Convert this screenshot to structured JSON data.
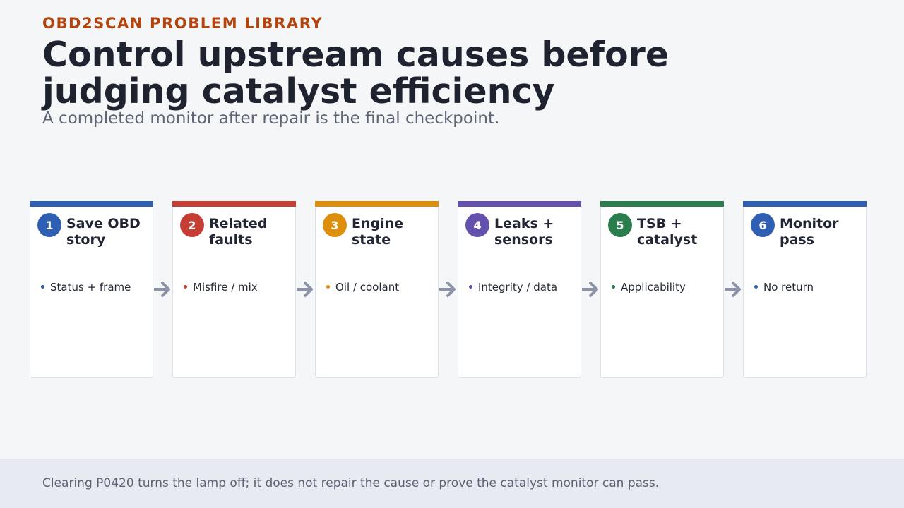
{
  "header": {
    "eyebrow": "OBD2SCAN PROBLEM LIBRARY",
    "title": "Control upstream causes before judging catalyst efficiency",
    "subtitle": "A completed monitor after repair is the final checkpoint."
  },
  "steps": [
    {
      "number": "1",
      "label": "Save OBD story",
      "detail": "Status + frame",
      "color": "#2f5fb3"
    },
    {
      "number": "2",
      "label": "Related faults",
      "detail": "Misfire / mix",
      "color": "#c53d33"
    },
    {
      "number": "3",
      "label": "Engine state",
      "detail": "Oil / coolant",
      "color": "#dd8f0c"
    },
    {
      "number": "4",
      "label": "Leaks + sensors",
      "detail": "Integrity / data",
      "color": "#6450ad"
    },
    {
      "number": "5",
      "label": "TSB + catalyst",
      "detail": "Applicability",
      "color": "#2a7d4c"
    },
    {
      "number": "6",
      "label": "Monitor pass",
      "detail": "No return",
      "color": "#2f5fb3"
    }
  ],
  "arrow_color": "#8b93a7",
  "footer": {
    "note": "Clearing P0420 turns the lamp off; it does not repair the cause or prove the catalyst monitor can pass."
  }
}
